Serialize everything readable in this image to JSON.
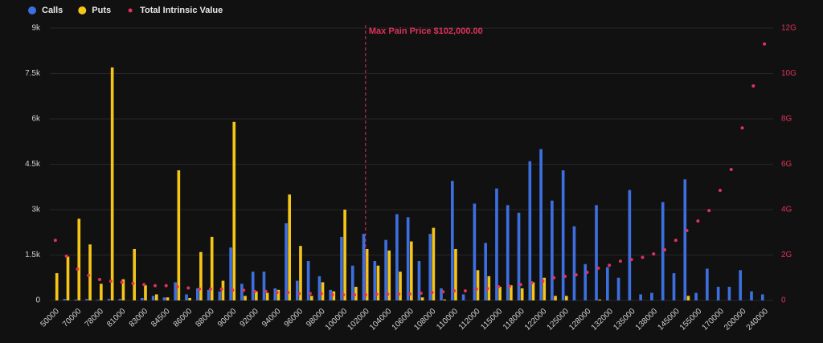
{
  "chart_data": {
    "type": "bar",
    "legend": "top-left",
    "grid": true,
    "categories": [
      "50000",
      null,
      "70000",
      null,
      "78000",
      null,
      "81000",
      null,
      "83000",
      null,
      "84500",
      null,
      "86000",
      null,
      "88000",
      null,
      "90000",
      null,
      "92000",
      null,
      "94000",
      null,
      "96000",
      null,
      "98000",
      null,
      "100000",
      null,
      "102000",
      null,
      "104000",
      null,
      "106000",
      null,
      "108000",
      null,
      "110000",
      null,
      "112000",
      null,
      "115000",
      null,
      "118000",
      null,
      "122000",
      null,
      "125000",
      null,
      "128000",
      null,
      "132000",
      null,
      "135000",
      null,
      "138000",
      null,
      "145000",
      null,
      "155000",
      null,
      "170000",
      null,
      "200000",
      null,
      "240000"
    ],
    "series": [
      {
        "name": "Calls",
        "type": "bar",
        "color": "#3d6fe0",
        "values": [
          0,
          50,
          30,
          50,
          20,
          50,
          50,
          0,
          80,
          150,
          100,
          600,
          200,
          400,
          350,
          300,
          1750,
          550,
          950,
          950,
          400,
          2550,
          650,
          1300,
          800,
          350,
          2100,
          1150,
          2200,
          1300,
          2000,
          2850,
          2750,
          1300,
          2200,
          400,
          3950,
          200,
          3200,
          1900,
          3700,
          3150,
          2900,
          4600,
          5000,
          3300,
          4300,
          2450,
          1200,
          3150,
          1100,
          750,
          3650,
          200,
          250,
          3250,
          900,
          4000,
          250,
          1050,
          450,
          450,
          1000,
          300,
          200
        ]
      },
      {
        "name": "Puts",
        "type": "bar",
        "color": "#f5c518",
        "values": [
          900,
          1450,
          2700,
          1850,
          550,
          7700,
          700,
          1700,
          500,
          200,
          100,
          4300,
          80,
          1600,
          2100,
          650,
          5900,
          150,
          300,
          250,
          350,
          3500,
          1800,
          150,
          600,
          300,
          3000,
          450,
          1700,
          1150,
          1650,
          950,
          1950,
          100,
          2400,
          30,
          1700,
          0,
          1000,
          800,
          450,
          500,
          400,
          600,
          750,
          150,
          150,
          0,
          0,
          30,
          0,
          0,
          0,
          0,
          0,
          0,
          0,
          150,
          0,
          0,
          0,
          0,
          0,
          0,
          0
        ]
      },
      {
        "name": "Total Intrinsic Value",
        "type": "scatter",
        "axis": "y2",
        "color": "#e0325a",
        "values": [
          2.65,
          1.95,
          1.38,
          1.1,
          0.92,
          0.85,
          0.8,
          0.75,
          0.7,
          0.65,
          0.65,
          0.6,
          0.55,
          0.5,
          0.5,
          0.5,
          0.45,
          0.45,
          0.4,
          0.4,
          0.35,
          0.35,
          0.3,
          0.3,
          0.3,
          0.25,
          0.25,
          0.25,
          0.25,
          0.27,
          0.28,
          0.28,
          0.28,
          0.32,
          0.35,
          0.38,
          0.42,
          0.42,
          0.5,
          0.52,
          0.6,
          0.63,
          0.7,
          0.78,
          0.85,
          1.0,
          1.06,
          1.13,
          1.24,
          1.42,
          1.55,
          1.73,
          1.8,
          1.9,
          2.05,
          2.23,
          2.65,
          3.08,
          3.5,
          3.96,
          4.85,
          5.77,
          7.6,
          9.45,
          11.3
        ]
      }
    ],
    "ylim": [
      0,
      9000
    ],
    "yticks": [
      0,
      {
        "value": 1500,
        "label": "1.5k"
      },
      {
        "value": 3000,
        "label": "3k"
      },
      {
        "value": 4500,
        "label": "4.5k"
      },
      {
        "value": 6000,
        "label": "6k"
      },
      {
        "value": 7500,
        "label": "7.5k"
      },
      {
        "value": 9000,
        "label": "9k"
      }
    ],
    "y2lim": [
      0,
      12
    ],
    "y2ticks": [
      0,
      {
        "value": 2,
        "label": "2G"
      },
      {
        "value": 4,
        "label": "4G"
      },
      {
        "value": 6,
        "label": "6G"
      },
      {
        "value": 8,
        "label": "8G"
      },
      {
        "value": 10,
        "label": "10G"
      },
      {
        "value": 12,
        "label": "12G"
      }
    ],
    "annotation": {
      "text": "Max Pain Price $102,000.00",
      "x": "102000"
    }
  }
}
